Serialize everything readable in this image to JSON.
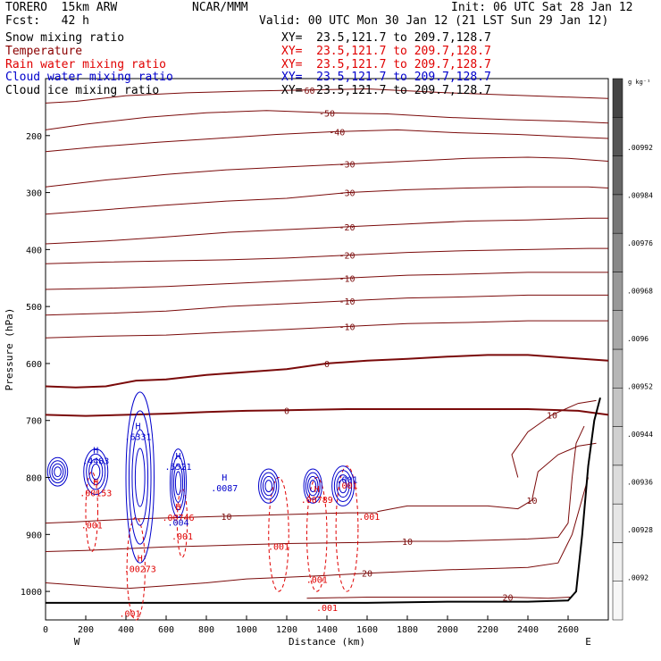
{
  "header": {
    "model": "TORERO  15km ARW",
    "org": "NCAR/MMM",
    "init": "Init: 06 UTC Sat 28 Jan 12",
    "fcst": "Fcst:   42 h",
    "valid": "Valid: 00 UTC Mon 30 Jan 12 (21 LST Sun 29 Jan 12)"
  },
  "fields": [
    {
      "name": "Snow mixing ratio",
      "xy": "XY=  23.5,121.7 to 209.7,128.7",
      "color": "#000000"
    },
    {
      "name": "Temperature",
      "xy": "XY=  23.5,121.7 to 209.7,128.7",
      "color": "#8b0000"
    },
    {
      "name": "Rain water mixing ratio",
      "xy": "XY=  23.5,121.7 to 209.7,128.7",
      "color": "#e00000"
    },
    {
      "name": "Cloud water mixing ratio",
      "xy": "XY=  23.5,121.7 to 209.7,128.7",
      "color": "#0000cc"
    },
    {
      "name": "Cloud ice mixing ratio",
      "xy": "XY=  23.5,121.7 to 209.7,128.7",
      "color": "#000000"
    }
  ],
  "colors": {
    "temperature": "#7a0a0a",
    "rain": "#e00000",
    "cloud_water": "#0000cc",
    "ground": "#000000",
    "colorbar": [
      "#f7f7f7",
      "#f0f0f0",
      "#e6e6e6",
      "#dcdcdc",
      "#d0d0d0",
      "#c4c4c4",
      "#b6b6b6",
      "#a8a8a8",
      "#989898",
      "#888888",
      "#777777",
      "#666666",
      "#555555",
      "#444444"
    ]
  },
  "chart_data": {
    "type": "contour",
    "xlabel": "Distance (km)",
    "ylabel": "Pressure (hPa)",
    "xlim": [
      0,
      2800
    ],
    "ylim": [
      1050,
      100
    ],
    "x_ticks": [
      0,
      200,
      400,
      600,
      800,
      1000,
      1200,
      1400,
      1600,
      1800,
      2000,
      2200,
      2400,
      2600
    ],
    "y_ticks": [
      200,
      300,
      400,
      500,
      600,
      700,
      800,
      900,
      1000
    ],
    "x_end_labels": {
      "left": "W",
      "right": "E"
    },
    "grid": false,
    "colorbar": {
      "unit": "g kg⁻¹",
      "labels": [
        ".00992",
        ".00984",
        ".00976",
        ".00968",
        ".0096",
        ".00952",
        ".00944",
        ".00936",
        ".00928",
        ".0092"
      ]
    },
    "temperature_contours": [
      {
        "label": "-60",
        "pts": [
          [
            0,
            143
          ],
          [
            150,
            140
          ],
          [
            400,
            130
          ],
          [
            700,
            125
          ],
          [
            1000,
            122
          ],
          [
            1300,
            120
          ],
          [
            1600,
            118
          ],
          [
            2000,
            125
          ],
          [
            2400,
            130
          ],
          [
            2800,
            135
          ]
        ]
      },
      {
        "label": "-50",
        "pts": [
          [
            0,
            190
          ],
          [
            200,
            180
          ],
          [
            500,
            168
          ],
          [
            800,
            160
          ],
          [
            1100,
            156
          ],
          [
            1400,
            160
          ],
          [
            1700,
            162
          ],
          [
            2000,
            168
          ],
          [
            2300,
            172
          ],
          [
            2600,
            175
          ],
          [
            2800,
            178
          ]
        ]
      },
      {
        "label": "-40",
        "pts": [
          [
            0,
            228
          ],
          [
            250,
            220
          ],
          [
            550,
            212
          ],
          [
            850,
            205
          ],
          [
            1150,
            198
          ],
          [
            1450,
            193
          ],
          [
            1750,
            190
          ],
          [
            2050,
            195
          ],
          [
            2350,
            198
          ],
          [
            2600,
            202
          ],
          [
            2800,
            205
          ]
        ]
      },
      {
        "label": "-30",
        "pts": [
          [
            0,
            290
          ],
          [
            300,
            278
          ],
          [
            600,
            268
          ],
          [
            900,
            260
          ],
          [
            1200,
            255
          ],
          [
            1500,
            250
          ],
          [
            1800,
            245
          ],
          [
            2100,
            240
          ],
          [
            2400,
            238
          ],
          [
            2600,
            240
          ],
          [
            2800,
            245
          ]
        ]
      },
      {
        "label": "-30",
        "pts": [
          [
            0,
            338
          ],
          [
            300,
            330
          ],
          [
            600,
            322
          ],
          [
            900,
            315
          ],
          [
            1200,
            310
          ],
          [
            1500,
            300
          ],
          [
            1800,
            295
          ],
          [
            2100,
            292
          ],
          [
            2400,
            290
          ],
          [
            2700,
            290
          ],
          [
            2800,
            292
          ]
        ]
      },
      {
        "label": "-20",
        "pts": [
          [
            0,
            390
          ],
          [
            300,
            385
          ],
          [
            600,
            378
          ],
          [
            900,
            370
          ],
          [
            1200,
            365
          ],
          [
            1500,
            360
          ],
          [
            1800,
            355
          ],
          [
            2100,
            350
          ],
          [
            2400,
            348
          ],
          [
            2700,
            345
          ],
          [
            2800,
            345
          ]
        ]
      },
      {
        "label": "-20",
        "pts": [
          [
            0,
            425
          ],
          [
            300,
            422
          ],
          [
            600,
            420
          ],
          [
            900,
            418
          ],
          [
            1200,
            415
          ],
          [
            1500,
            410
          ],
          [
            1800,
            405
          ],
          [
            2100,
            402
          ],
          [
            2400,
            400
          ],
          [
            2700,
            398
          ],
          [
            2800,
            398
          ]
        ]
      },
      {
        "label": "-10",
        "pts": [
          [
            0,
            470
          ],
          [
            300,
            468
          ],
          [
            600,
            465
          ],
          [
            900,
            460
          ],
          [
            1200,
            455
          ],
          [
            1500,
            450
          ],
          [
            1800,
            445
          ],
          [
            2100,
            443
          ],
          [
            2400,
            440
          ],
          [
            2800,
            440
          ]
        ]
      },
      {
        "label": "-10",
        "pts": [
          [
            0,
            515
          ],
          [
            300,
            512
          ],
          [
            600,
            508
          ],
          [
            900,
            500
          ],
          [
            1200,
            495
          ],
          [
            1500,
            490
          ],
          [
            1800,
            485
          ],
          [
            2100,
            483
          ],
          [
            2400,
            480
          ],
          [
            2800,
            480
          ]
        ]
      },
      {
        "label": "-10",
        "pts": [
          [
            0,
            555
          ],
          [
            300,
            552
          ],
          [
            600,
            550
          ],
          [
            900,
            545
          ],
          [
            1200,
            540
          ],
          [
            1500,
            535
          ],
          [
            1800,
            530
          ],
          [
            2100,
            528
          ],
          [
            2400,
            525
          ],
          [
            2800,
            525
          ]
        ]
      },
      {
        "label": "0",
        "bold": true,
        "pts": [
          [
            0,
            640
          ],
          [
            150,
            642
          ],
          [
            300,
            640
          ],
          [
            450,
            630
          ],
          [
            600,
            628
          ],
          [
            800,
            620
          ],
          [
            1000,
            615
          ],
          [
            1200,
            610
          ],
          [
            1400,
            600
          ],
          [
            1600,
            595
          ],
          [
            1800,
            592
          ],
          [
            2000,
            588
          ],
          [
            2200,
            585
          ],
          [
            2400,
            585
          ],
          [
            2600,
            590
          ],
          [
            2800,
            595
          ]
        ]
      },
      {
        "label": "0",
        "bold": true,
        "pts": [
          [
            0,
            690
          ],
          [
            200,
            692
          ],
          [
            400,
            690
          ],
          [
            600,
            688
          ],
          [
            800,
            685
          ],
          [
            1000,
            683
          ],
          [
            1200,
            682
          ],
          [
            1500,
            680
          ],
          [
            1800,
            680
          ],
          [
            2100,
            680
          ],
          [
            2400,
            680
          ],
          [
            2650,
            683
          ],
          [
            2800,
            690
          ]
        ]
      },
      {
        "label": "10",
        "pts": [
          [
            2350,
            800
          ],
          [
            2320,
            760
          ],
          [
            2400,
            720
          ],
          [
            2520,
            690
          ],
          [
            2650,
            670
          ],
          [
            2740,
            665
          ]
        ]
      },
      {
        "label": "10",
        "pts": [
          [
            1650,
            860
          ],
          [
            1800,
            850
          ],
          [
            2000,
            850
          ],
          [
            2200,
            850
          ],
          [
            2350,
            855
          ],
          [
            2420,
            840
          ],
          [
            2450,
            790
          ],
          [
            2550,
            760
          ],
          [
            2650,
            745
          ],
          [
            2740,
            740
          ]
        ]
      },
      {
        "label": "20",
        "pts": [
          [
            0,
            985
          ],
          [
            200,
            990
          ],
          [
            400,
            995
          ],
          [
            600,
            990
          ],
          [
            800,
            985
          ],
          [
            1000,
            978
          ],
          [
            1200,
            975
          ],
          [
            1400,
            972
          ],
          [
            1600,
            968
          ],
          [
            1800,
            965
          ],
          [
            2000,
            962
          ],
          [
            2200,
            960
          ],
          [
            2400,
            958
          ],
          [
            2550,
            950
          ],
          [
            2620,
            900
          ],
          [
            2660,
            850
          ],
          [
            2700,
            800
          ]
        ]
      },
      {
        "label": "20",
        "pts": [
          [
            1300,
            1012
          ],
          [
            1600,
            1010
          ],
          [
            2000,
            1010
          ],
          [
            2300,
            1010
          ],
          [
            2500,
            1012
          ],
          [
            2610,
            1010
          ]
        ]
      },
      {
        "label": "10",
        "pts": [
          [
            0,
            880
          ],
          [
            150,
            878
          ],
          [
            300,
            875
          ],
          [
            500,
            872
          ],
          [
            700,
            870
          ],
          [
            900,
            868
          ],
          [
            1100,
            866
          ],
          [
            1300,
            864
          ],
          [
            1500,
            862
          ],
          [
            1650,
            862
          ]
        ]
      },
      {
        "label": "10",
        "pts": [
          [
            0,
            930
          ],
          [
            200,
            928
          ],
          [
            400,
            925
          ],
          [
            600,
            922
          ],
          [
            800,
            920
          ],
          [
            1000,
            918
          ],
          [
            1200,
            916
          ],
          [
            1400,
            915
          ],
          [
            1600,
            914
          ],
          [
            1800,
            912
          ],
          [
            2000,
            912
          ],
          [
            2200,
            910
          ],
          [
            2400,
            908
          ],
          [
            2550,
            905
          ],
          [
            2600,
            880
          ],
          [
            2620,
            800
          ],
          [
            2640,
            740
          ],
          [
            2680,
            710
          ]
        ]
      }
    ],
    "ground": [
      [
        0,
        1020
      ],
      [
        400,
        1020
      ],
      [
        800,
        1020
      ],
      [
        1200,
        1020
      ],
      [
        1600,
        1020
      ],
      [
        2000,
        1018
      ],
      [
        2400,
        1018
      ],
      [
        2600,
        1016
      ],
      [
        2640,
        1000
      ],
      [
        2670,
        900
      ],
      [
        2700,
        780
      ],
      [
        2730,
        700
      ],
      [
        2760,
        660
      ]
    ],
    "cloud_water_maxima": [
      {
        "label": "H",
        "value": ".4483",
        "x": 250,
        "p": 770
      },
      {
        "label": "H",
        "value": ".6331",
        "x": 460,
        "p": 728
      },
      {
        "label": "H",
        "value": ".5521",
        "x": 660,
        "p": 780
      },
      {
        "label": "H",
        "value": ".0087",
        "x": 890,
        "p": 818
      }
    ],
    "rain_maxima": [
      {
        "label": "H",
        "value": ".00153",
        "x": 250,
        "p": 827
      },
      {
        "label": "H",
        "value": ".00273",
        "x": 470,
        "p": 960
      },
      {
        "label": "H",
        "value": ".00746",
        "x": 660,
        "p": 870
      },
      {
        "label": "H",
        "value": ".00789",
        "x": 1350,
        "p": 838
      }
    ],
    "rain_contour_labels": [
      {
        "value": ".001",
        "x": 230,
        "p": 885
      },
      {
        "value": ".001",
        "x": 680,
        "p": 904
      },
      {
        "value": ".001",
        "x": 1160,
        "p": 922
      },
      {
        "value": ".001",
        "x": 1350,
        "p": 980
      },
      {
        "value": ".001",
        "x": 1500,
        "p": 815
      },
      {
        "value": ".001",
        "x": 1610,
        "p": 870
      },
      {
        "value": ".001",
        "x": 1400,
        "p": 1030
      },
      {
        "value": ".001",
        "x": 420,
        "p": 1040
      }
    ],
    "cloud_contour_labels": [
      {
        "value": ".001",
        "x": 1500,
        "p": 805
      },
      {
        "value": ".004",
        "x": 660,
        "p": 880
      }
    ]
  }
}
